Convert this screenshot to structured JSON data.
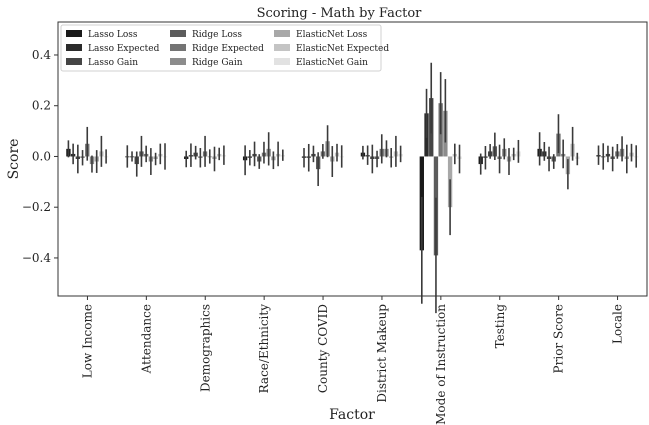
{
  "chart_data": {
    "type": "bar",
    "title": "Scoring - Math by Factor",
    "xlabel": "Factor",
    "ylabel": "Score",
    "ylim": [
      -0.55,
      0.53
    ],
    "yticks": [
      -0.4,
      -0.2,
      0.0,
      0.2,
      0.4
    ],
    "ytick_labels": [
      "−0.4",
      "−0.2",
      "0.0",
      "0.2",
      "0.4"
    ],
    "grid": false,
    "legend_position": "top-left",
    "categories": [
      "Low Income",
      "Attendance",
      "Demographics",
      "Race/Ethnicity",
      "County COVID",
      "District Makeup",
      "Mode of Instruction",
      "Testing",
      "Prior Score",
      "Locale"
    ],
    "series": [
      {
        "name": "Lasso Loss",
        "color": "#1a1a1a",
        "values": [
          0.03,
          0.0,
          -0.01,
          -0.015,
          -0.005,
          0.015,
          -0.37,
          -0.03,
          0.03,
          0.005
        ]
      },
      {
        "name": "Lasso Expected",
        "color": "#2b2b2b",
        "values": [
          0.01,
          0.0,
          0.005,
          -0.005,
          -0.005,
          0.005,
          0.17,
          -0.005,
          0.02,
          0.0
        ]
      },
      {
        "name": "Lasso Gain",
        "color": "#454545",
        "values": [
          -0.01,
          -0.03,
          0.015,
          0.01,
          0.01,
          -0.01,
          0.23,
          0.02,
          -0.01,
          0.01
        ]
      },
      {
        "name": "Ridge Loss",
        "color": "#5c5c5c",
        "values": [
          -0.005,
          0.02,
          -0.005,
          -0.02,
          -0.05,
          -0.01,
          -0.39,
          0.04,
          -0.02,
          -0.01
        ]
      },
      {
        "name": "Ridge Expected",
        "color": "#747474",
        "values": [
          0.05,
          0.01,
          0.02,
          0.015,
          0.02,
          0.03,
          0.21,
          -0.01,
          0.09,
          0.02
        ]
      },
      {
        "name": "Ridge Gain",
        "color": "#8c8c8c",
        "values": [
          -0.03,
          -0.02,
          0.0,
          0.03,
          0.06,
          0.03,
          0.18,
          0.03,
          0.01,
          0.03
        ]
      },
      {
        "name": "ElasticNet Loss",
        "color": "#a8a8a8",
        "values": [
          -0.02,
          -0.01,
          -0.01,
          -0.015,
          -0.02,
          -0.005,
          -0.2,
          -0.02,
          -0.07,
          -0.01
        ]
      },
      {
        "name": "ElasticNet Expected",
        "color": "#c4c4c4",
        "values": [
          0.02,
          0.01,
          0.01,
          0.01,
          0.015,
          0.02,
          0.01,
          0.01,
          0.05,
          0.015
        ]
      },
      {
        "name": "ElasticNet Gain",
        "color": "#e2e2e2",
        "values": [
          0.0,
          0.0,
          0.005,
          0.005,
          0.0,
          0.01,
          -0.01,
          0.02,
          -0.01,
          0.0
        ]
      }
    ]
  }
}
